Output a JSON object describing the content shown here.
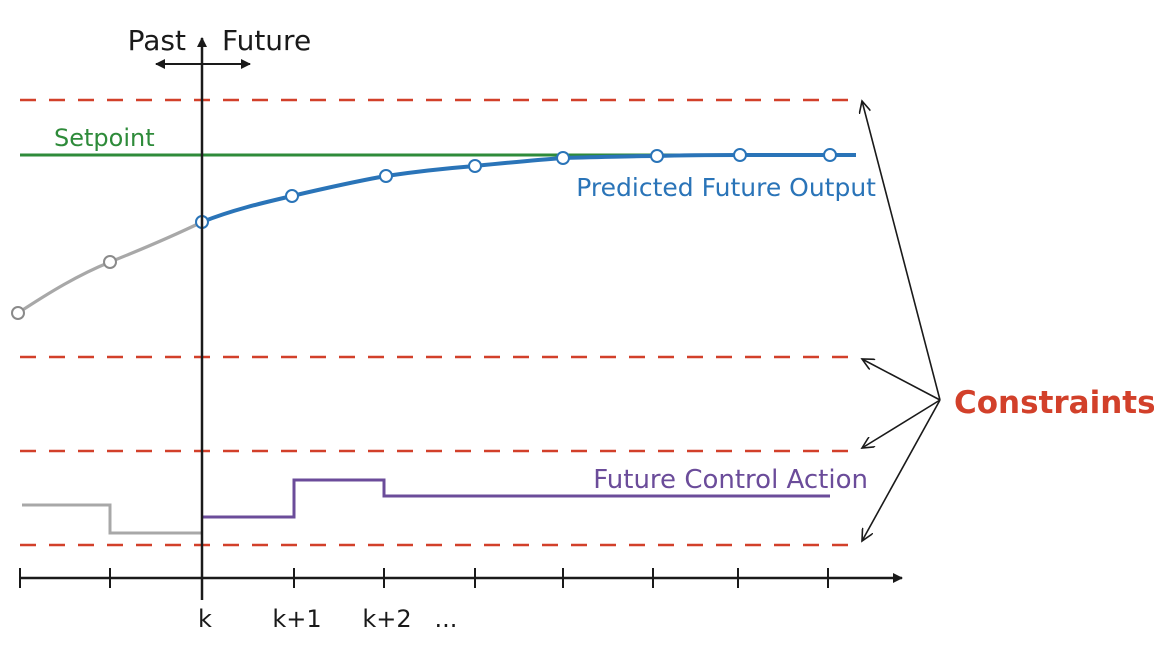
{
  "labels": {
    "past": "Past",
    "future": "Future",
    "setpoint": "Setpoint",
    "predicted_output": "Predicted Future Output",
    "control_action": "Future Control Action",
    "constraints": "Constraints"
  },
  "time_ticks": {
    "k": "k",
    "k1": "k+1",
    "k2": "k+2",
    "ellipsis": "..."
  },
  "colors": {
    "setpoint": "#2e8b3a",
    "predicted_output": "#2a74b8",
    "past_output": "#a8a8a8",
    "control_action": "#6b4c9a",
    "constraints": "#d2402a",
    "axis": "#1a1a1a"
  }
}
